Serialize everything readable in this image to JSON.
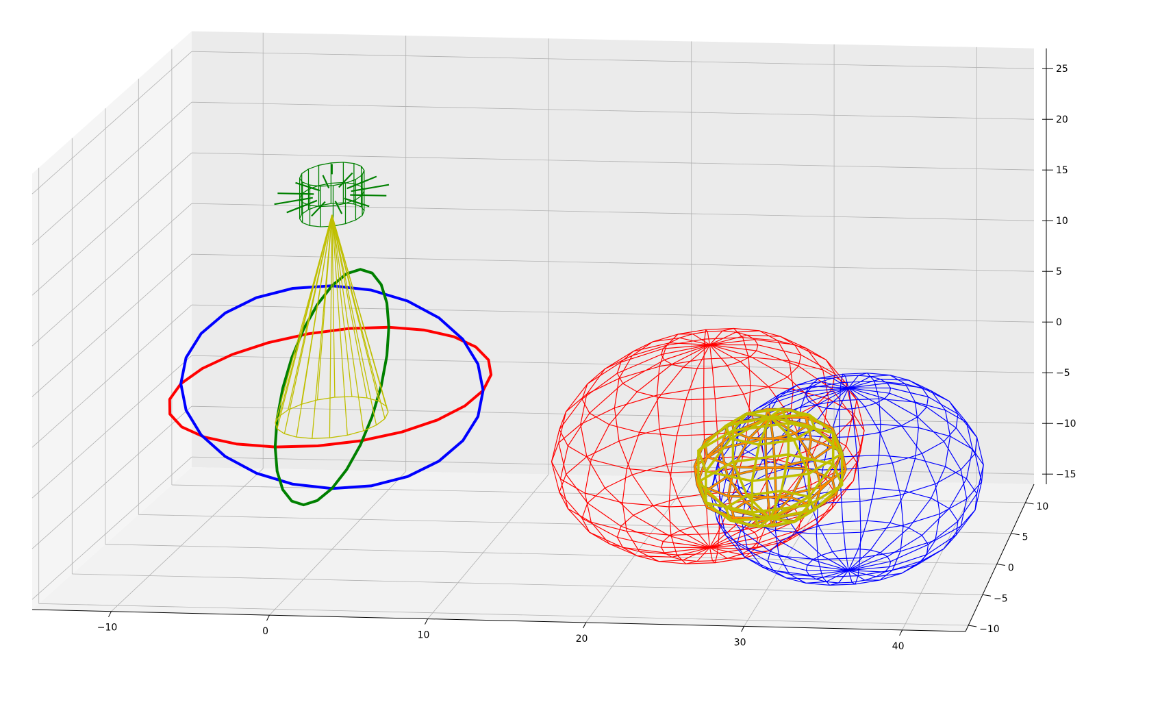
{
  "chart_data": {
    "type": "scatter",
    "projection": "3d-wireframe",
    "title": "",
    "xlabel": "",
    "ylabel": "",
    "zlabel": "",
    "xlim": [
      -15,
      44
    ],
    "ylim": [
      -11,
      13
    ],
    "zlim": [
      -16,
      27
    ],
    "xticks": [
      "−10",
      "0",
      "10",
      "20",
      "30",
      "40"
    ],
    "yticks": [
      "−10",
      "−5",
      "0",
      "5",
      "10"
    ],
    "zticks": [
      "−15",
      "−10",
      "−5",
      "0",
      "5",
      "10",
      "15",
      "20",
      "25"
    ],
    "grid": true,
    "legend": "none",
    "colors": {
      "ring_xy": "#ff0000",
      "ring_xz": "#0000ff",
      "ring_yz": "#008000",
      "source_cylinder": "#008000",
      "beam": "#bfbf00",
      "large_sphere": "#ff0000",
      "second_sphere": "#0000ff",
      "overlap_lens": "#bfbf00",
      "overlap_edge_orange": "#ff8c00",
      "overlap_edge_gray": "#2f4f4f"
    },
    "series": [
      {
        "kind": "ring",
        "plane": "xy",
        "center": [
          0,
          0,
          0
        ],
        "radius": 10
      },
      {
        "kind": "ring",
        "plane": "xz",
        "center": [
          0,
          0,
          0
        ],
        "radius": 10
      },
      {
        "kind": "ring",
        "plane": "yz",
        "center": [
          0,
          0,
          0
        ],
        "radius": 10
      },
      {
        "kind": "cylinder",
        "center": [
          0,
          0,
          19
        ],
        "radius": 2,
        "height": 4
      },
      {
        "kind": "cone",
        "apex": [
          0,
          0,
          17
        ],
        "base_center": [
          0,
          0,
          -3
        ],
        "base_radius": 3.5
      },
      {
        "kind": "sphere",
        "center": [
          25,
          0,
          -5
        ],
        "radius": 10
      },
      {
        "kind": "sphere",
        "center": [
          33,
          5,
          -11
        ],
        "radius": 9
      },
      {
        "kind": "lens",
        "center": [
          29,
          0,
          -7
        ],
        "radius": 5
      }
    ]
  }
}
